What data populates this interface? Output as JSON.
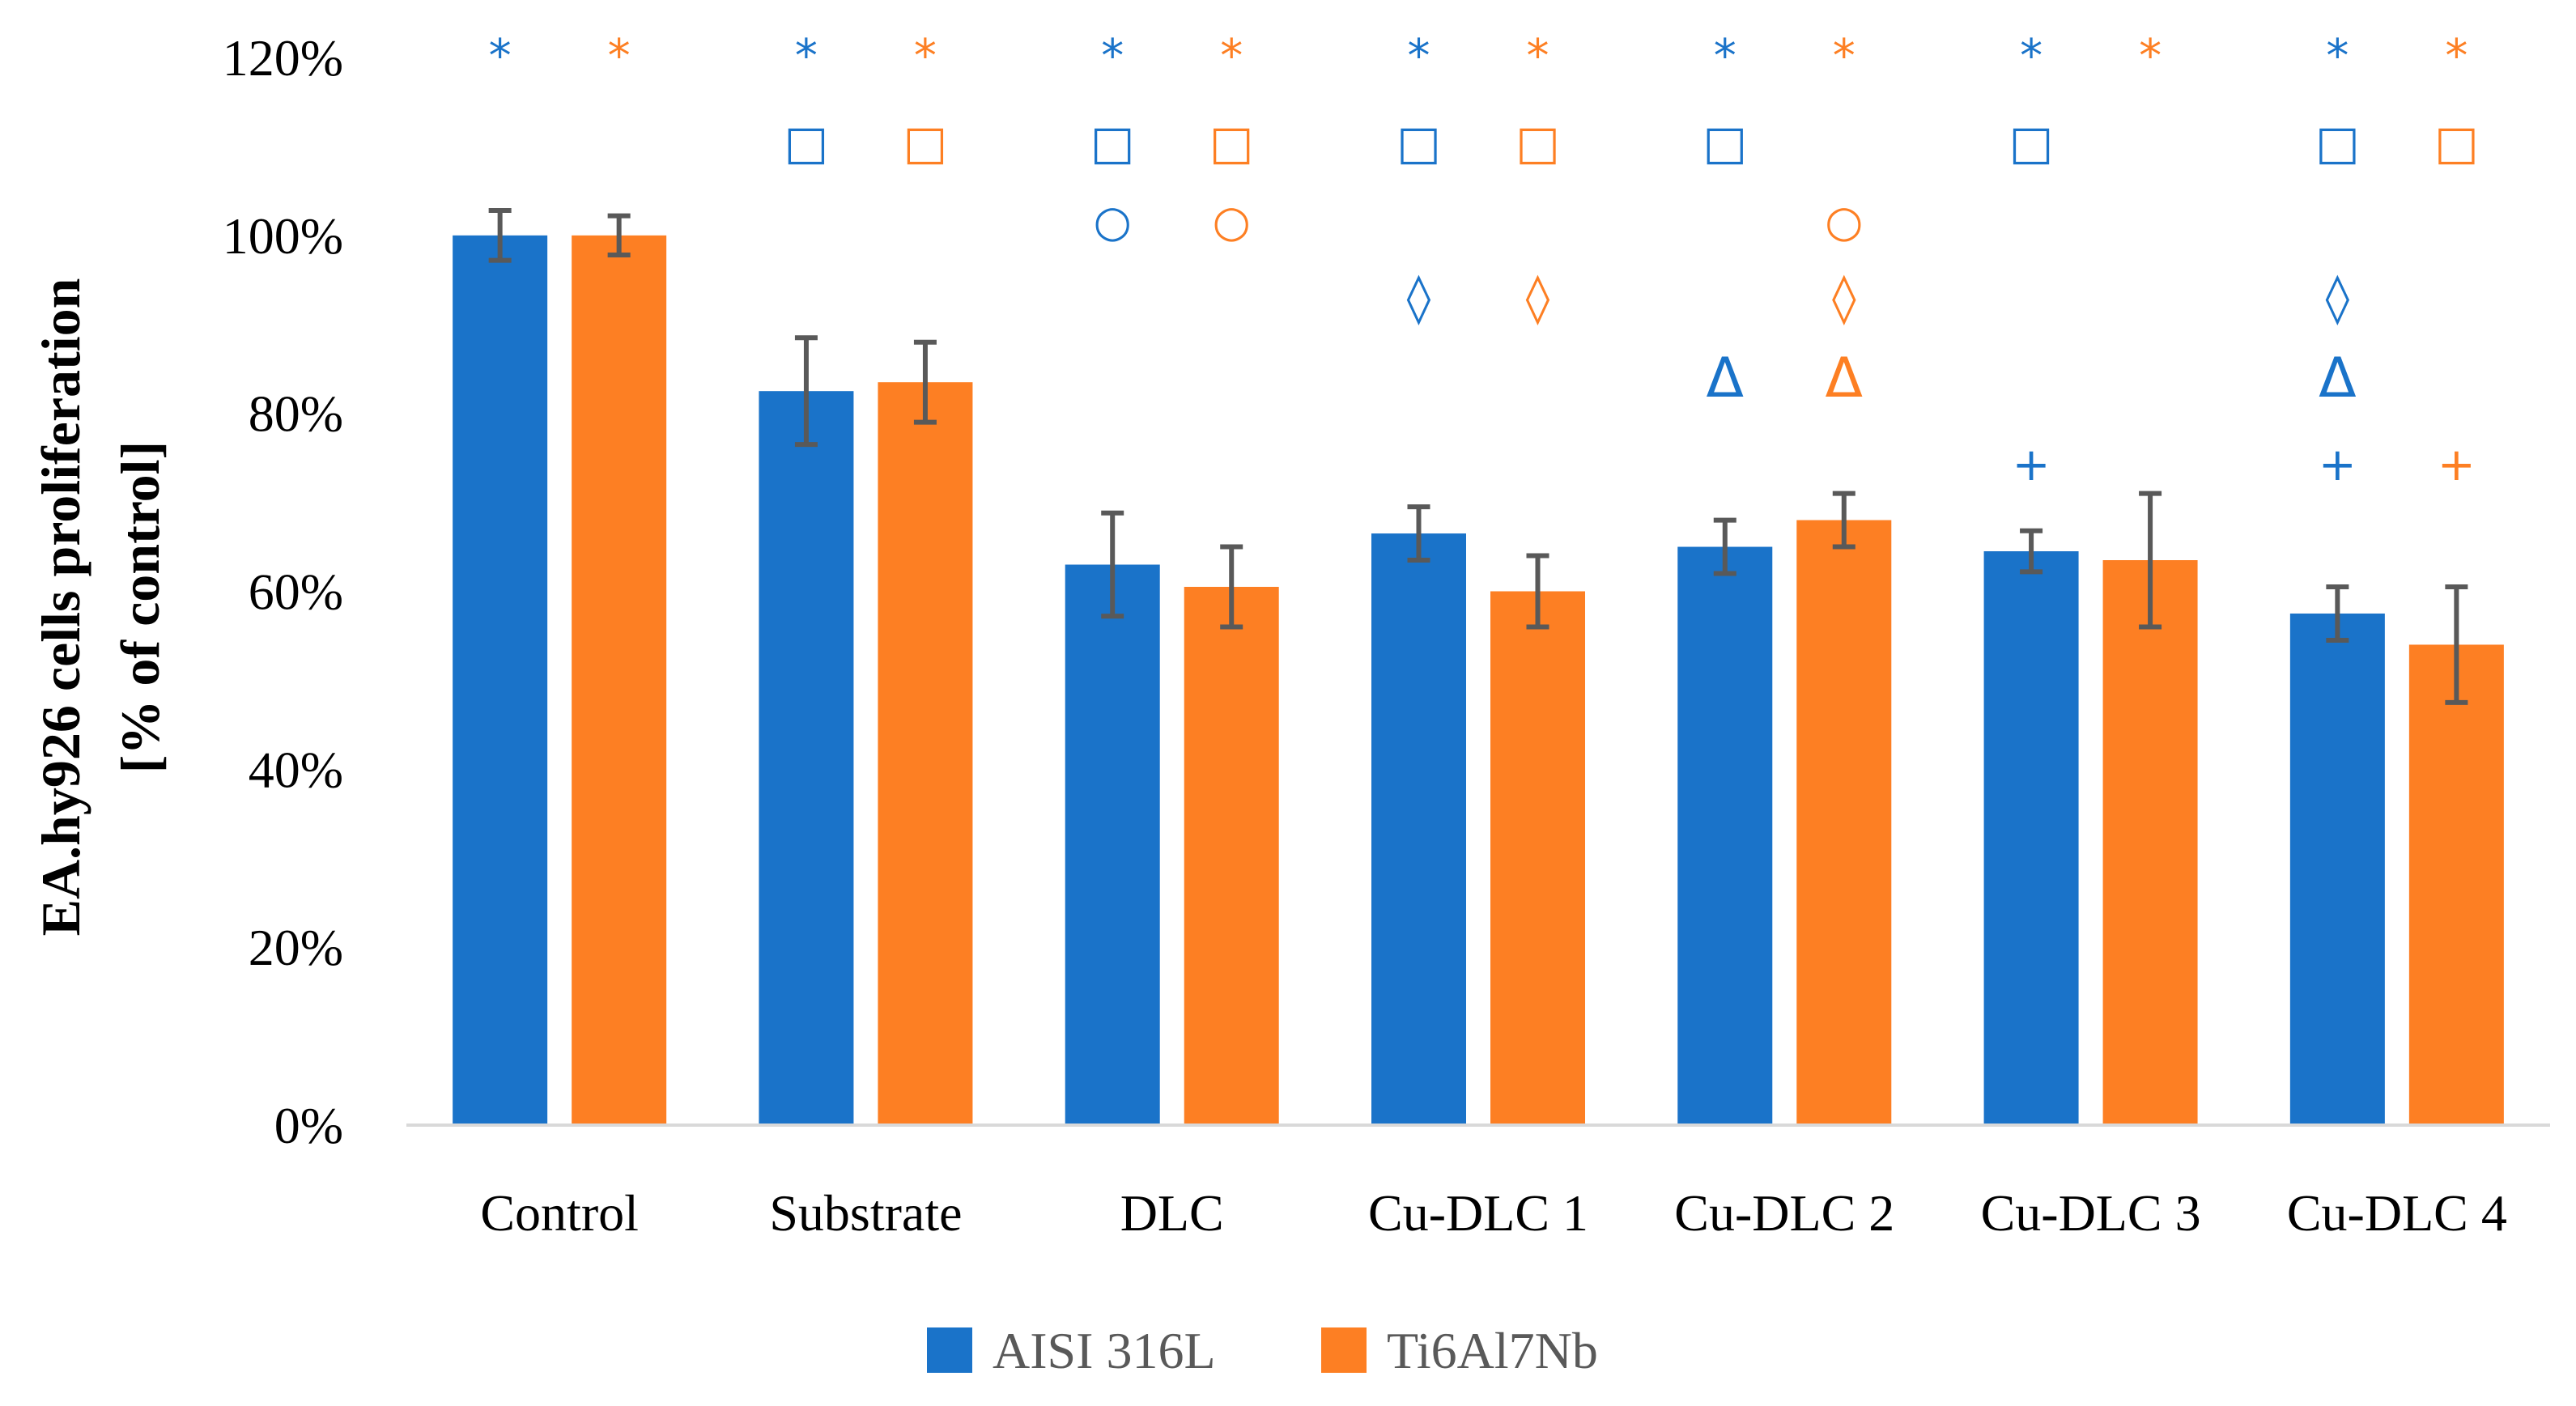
{
  "colors": {
    "AISI 316L": "#1a73c9",
    "Ti6Al7Nb": "#fd7f23",
    "error_bar": "#595959",
    "axis": "#d9d9d9"
  },
  "chart_data": {
    "type": "bar",
    "title": "",
    "xlabel": "",
    "ylabel_lines": [
      "EA.hy926 cells proliferation",
      "[% of control]"
    ],
    "ylim": [
      0,
      120
    ],
    "yticks": [
      "0%",
      "20%",
      "40%",
      "60%",
      "80%",
      "100%",
      "120%"
    ],
    "categories": [
      "Control",
      "Substrate",
      "DLC",
      "Cu-DLC 1",
      "Cu-DLC 2",
      "Cu-DLC 3",
      "Cu-DLC 4"
    ],
    "series": [
      {
        "name": "AISI 316L",
        "values": [
          100,
          82.5,
          63,
          66.5,
          65,
          64.5,
          57.5
        ],
        "errors": [
          2.8,
          6,
          5.8,
          3,
          3,
          2.3,
          3
        ]
      },
      {
        "name": "Ti6Al7Nb",
        "values": [
          100,
          83.5,
          60.5,
          60,
          68,
          63.5,
          54
        ],
        "errors": [
          2.2,
          4.5,
          4.5,
          4,
          3,
          7.5,
          6.5
        ]
      }
    ],
    "significance_markers": [
      {
        "AISI 316L": [
          "*"
        ],
        "Ti6Al7Nb": [
          "*"
        ]
      },
      {
        "AISI 316L": [
          "*",
          "□"
        ],
        "Ti6Al7Nb": [
          "*",
          "□"
        ]
      },
      {
        "AISI 316L": [
          "*",
          "□",
          "○"
        ],
        "Ti6Al7Nb": [
          "*",
          "□",
          "○"
        ]
      },
      {
        "AISI 316L": [
          "*",
          "□",
          "◊"
        ],
        "Ti6Al7Nb": [
          "*",
          "□",
          "◊"
        ]
      },
      {
        "AISI 316L": [
          "*",
          "□",
          "Δ"
        ],
        "Ti6Al7Nb": [
          "*",
          "○",
          "◊",
          "Δ"
        ]
      },
      {
        "AISI 316L": [
          "*",
          "□",
          "+"
        ],
        "Ti6Al7Nb": [
          "*"
        ]
      },
      {
        "AISI 316L": [
          "*",
          "□",
          "◊",
          "Δ",
          "+"
        ],
        "Ti6Al7Nb": [
          "*",
          "□",
          "+"
        ]
      }
    ],
    "legend_position": "bottom-center",
    "grid": false
  }
}
